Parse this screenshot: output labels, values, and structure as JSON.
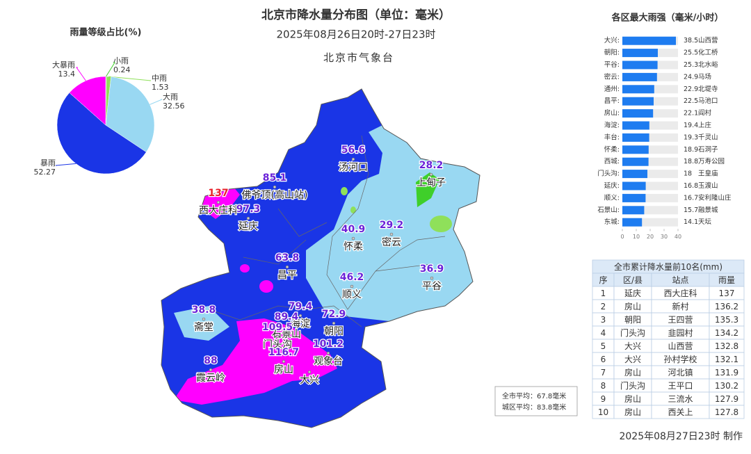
{
  "map": {
    "title": "北京市降水量分布图（单位：毫米）",
    "subtitle": "2025年08月26日20时-27日23时",
    "source": "北京市气象台",
    "value_color": "#6a22d8",
    "stations": [
      {
        "value": 56.6,
        "name": "汤河口"
      },
      {
        "value": 28.2,
        "name": "上甸子"
      },
      {
        "value": 85.1,
        "name": "佛爷顶(高山站)"
      },
      {
        "value": 137,
        "name": "西大庄科",
        "color": "#e8202a"
      },
      {
        "value": 97.3,
        "name": "延庆"
      },
      {
        "value": 40.9,
        "name": "怀柔"
      },
      {
        "value": 29.2,
        "name": "密云"
      },
      {
        "value": 63.8,
        "name": "昌平"
      },
      {
        "value": 46.2,
        "name": "顺义"
      },
      {
        "value": 36.9,
        "name": "平谷"
      },
      {
        "value": 38.8,
        "name": "斋堂"
      },
      {
        "value": 79.4,
        "name": "海淀"
      },
      {
        "value": 89.4,
        "name": "石景山"
      },
      {
        "value": 72.9,
        "name": "朝阳"
      },
      {
        "value": 109.5,
        "name": "门头沟"
      },
      {
        "value": 101.2,
        "name": "观象台"
      },
      {
        "value": 116.7,
        "name": "房山"
      },
      {
        "value": 88,
        "name": "霞云岭"
      },
      {
        "name": "大兴"
      }
    ]
  },
  "chart_data": [
    {
      "type": "pie",
      "title": "雨量等级占比(%)",
      "categories": [
        "小雨",
        "中雨",
        "大雨",
        "暴雨",
        "大暴雨"
      ],
      "values": [
        0.24,
        1.53,
        32.56,
        52.27,
        13.4
      ],
      "colors": [
        "#3fcf2a",
        "#8fe05a",
        "#99d8f2",
        "#1a35e6",
        "#ff00ff"
      ]
    },
    {
      "type": "bar",
      "title": "各区最大雨强（毫米/小时）",
      "orientation": "horizontal",
      "categories": [
        "大兴:",
        "朝阳:",
        "平谷:",
        "密云:",
        "通州:",
        "昌平:",
        "房山:",
        "海淀:",
        "丰台:",
        "怀柔:",
        "西城:",
        "门头沟:",
        "延庆:",
        "顺义:",
        "石景山:",
        "东城:"
      ],
      "values": [
        38.5,
        25.5,
        25.3,
        24.9,
        22.9,
        22.5,
        22.1,
        19.4,
        19.3,
        18.9,
        18.8,
        18,
        16.8,
        16.7,
        15.7,
        14.1
      ],
      "stations": [
        "山西营",
        "化工桥",
        "北水峪",
        "马场",
        "北堤寺",
        "马池口",
        "阎村",
        "上庄",
        "千灵山",
        "石洞子",
        "万寿公园",
        "王皇庙",
        "玉渡山",
        "安利隆山庄",
        "融景城",
        "天坛"
      ],
      "color": "#1e7cf0",
      "track_color": "#ebebeb",
      "xlim": [
        0,
        40
      ],
      "xticks": [
        0,
        10,
        20,
        30,
        40
      ]
    }
  ],
  "table": {
    "title": "全市累计降水量前10名(mm)",
    "header": [
      "序",
      "区/县",
      "站点",
      "雨量"
    ],
    "rows": [
      [
        "1",
        "延庆",
        "西大庄科",
        "137"
      ],
      [
        "2",
        "房山",
        "新村",
        "136.2"
      ],
      [
        "3",
        "朝阳",
        "王四营",
        "135.3"
      ],
      [
        "4",
        "门头沟",
        "韭园村",
        "134.2"
      ],
      [
        "5",
        "大兴",
        "山西营",
        "132.8"
      ],
      [
        "6",
        "大兴",
        "孙村学校",
        "132.1"
      ],
      [
        "7",
        "房山",
        "河北镇",
        "131.9"
      ],
      [
        "8",
        "门头沟",
        "王平口",
        "130.2"
      ],
      [
        "9",
        "房山",
        "三流水",
        "127.9"
      ],
      [
        "10",
        "房山",
        "西关上",
        "127.8"
      ]
    ]
  },
  "averages": [
    "全市平均：67.8毫米",
    "城区平均：83.8毫米"
  ],
  "footer": "2025年08月27日23时 制作"
}
